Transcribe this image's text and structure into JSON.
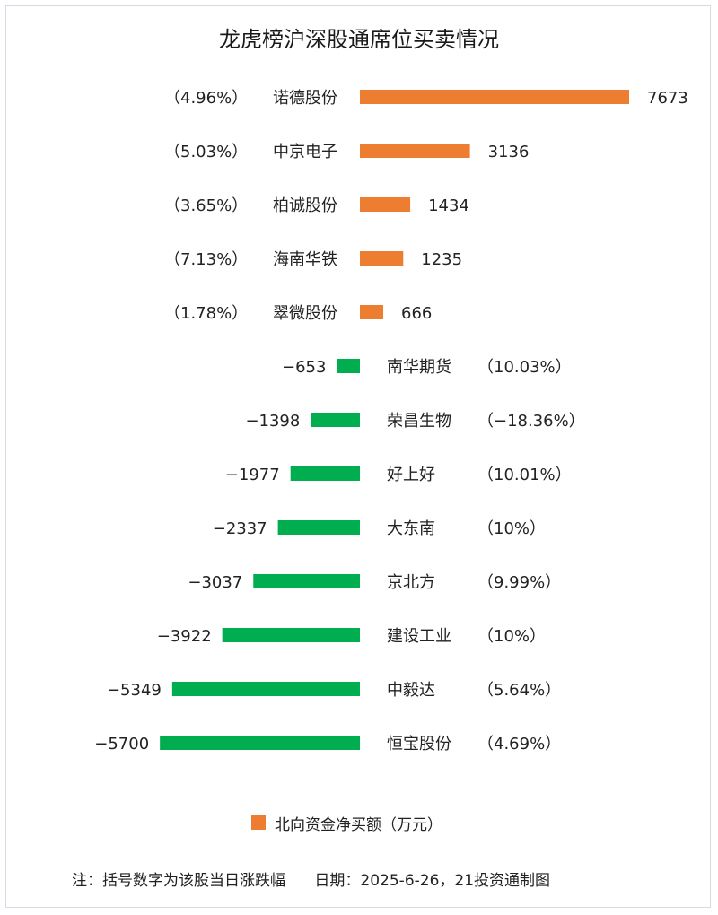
{
  "chart_data": {
    "type": "bar",
    "orientation": "horizontal",
    "title": "龙虎榜沪深股通席位买卖情况",
    "legend": {
      "label": "北向资金净买额（万元）",
      "color": "#ed7d31",
      "placement": "bottom"
    },
    "colors": {
      "positive": "#ed7d31",
      "negative": "#00ad4f"
    },
    "rows": [
      {
        "name": "诺德股份",
        "value": 7673,
        "value_label": "7673",
        "change": "（4.96%）"
      },
      {
        "name": "中京电子",
        "value": 3136,
        "value_label": "3136",
        "change": "（5.03%）"
      },
      {
        "name": "柏诚股份",
        "value": 1434,
        "value_label": "1434",
        "change": "（3.65%）"
      },
      {
        "name": "海南华铁",
        "value": 1235,
        "value_label": "1235",
        "change": "（7.13%）"
      },
      {
        "name": "翠微股份",
        "value": 666,
        "value_label": "666",
        "change": "（1.78%）"
      },
      {
        "name": "南华期货",
        "value": -653,
        "value_label": "−653",
        "change": "（10.03%）"
      },
      {
        "name": "荣昌生物",
        "value": -1398,
        "value_label": "−1398",
        "change": "（−18.36%）"
      },
      {
        "name": "好上好",
        "value": -1977,
        "value_label": "−1977",
        "change": "（10.01%）"
      },
      {
        "name": "大东南",
        "value": -2337,
        "value_label": "−2337",
        "change": "（10%）"
      },
      {
        "name": "京北方",
        "value": -3037,
        "value_label": "−3037",
        "change": "（9.99%）"
      },
      {
        "name": "建设工业",
        "value": -3922,
        "value_label": "−3922",
        "change": "（10%）"
      },
      {
        "name": "中毅达",
        "value": -5349,
        "value_label": "−5349",
        "change": "（5.64%）"
      },
      {
        "name": "恒宝股份",
        "value": -5700,
        "value_label": "−5700",
        "change": "（4.69%）"
      }
    ]
  },
  "footnote": "注：括号数字为该股当日涨跌幅      日期：2025-6-26，21投资通制图"
}
